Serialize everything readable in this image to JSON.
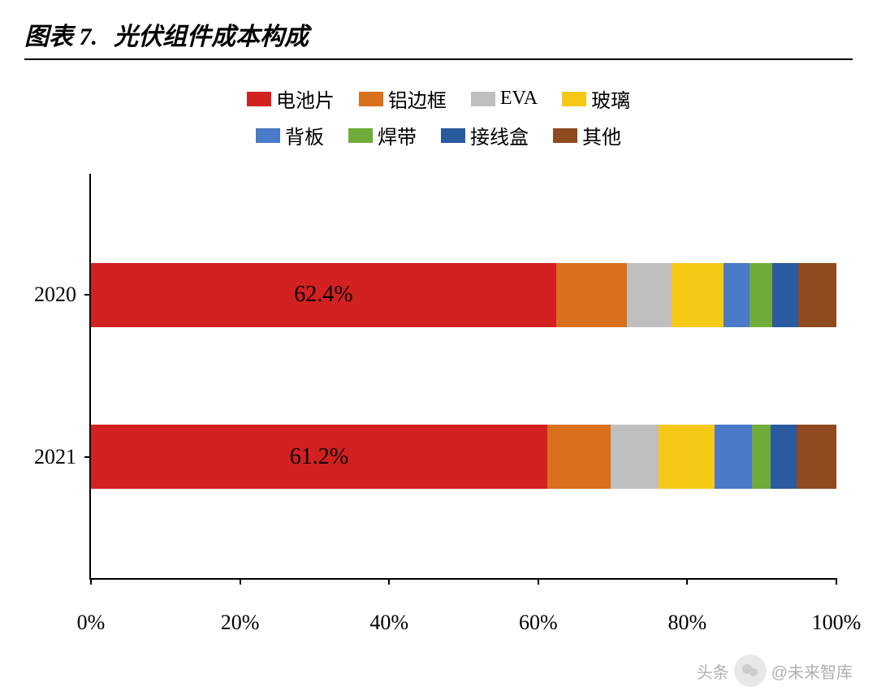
{
  "title": {
    "prefix": "图表 7.",
    "text": "光伏组件成本构成"
  },
  "legend": {
    "rows": [
      [
        {
          "label": "电池片",
          "color": "#d32020"
        },
        {
          "label": "铝边框",
          "color": "#d9701c"
        },
        {
          "label": "EVA",
          "color": "#bfbfbf"
        },
        {
          "label": "玻璃",
          "color": "#f5c816"
        }
      ],
      [
        {
          "label": "背板",
          "color": "#4a7ac8"
        },
        {
          "label": "焊带",
          "color": "#6fac3a"
        },
        {
          "label": "接线盒",
          "color": "#2a5aa0"
        },
        {
          "label": "其他",
          "color": "#8f4a1f"
        }
      ]
    ]
  },
  "chart": {
    "type": "stacked-bar-horizontal",
    "xlim": [
      0,
      100
    ],
    "xtick_step": 20,
    "xtick_suffix": "%",
    "bar_height_pct": 16,
    "background_color": "#ffffff",
    "axis_color": "#000000",
    "label_fontsize": 26,
    "series_colors": {
      "电池片": "#d32020",
      "铝边框": "#d9701c",
      "EVA": "#bfbfbf",
      "玻璃": "#f5c816",
      "背板": "#4a7ac8",
      "焊带": "#6fac3a",
      "接线盒": "#2a5aa0",
      "其他": "#8f4a1f"
    },
    "categories": [
      {
        "name": "2020",
        "top_pct": 22,
        "segments": [
          {
            "key": "电池片",
            "value": 62.4,
            "label": "62.4%"
          },
          {
            "key": "铝边框",
            "value": 9.5
          },
          {
            "key": "EVA",
            "value": 6.0
          },
          {
            "key": "玻璃",
            "value": 7.0
          },
          {
            "key": "背板",
            "value": 3.5
          },
          {
            "key": "焊带",
            "value": 3.0
          },
          {
            "key": "接线盒",
            "value": 3.5
          },
          {
            "key": "其他",
            "value": 5.1
          }
        ]
      },
      {
        "name": "2021",
        "top_pct": 62,
        "segments": [
          {
            "key": "电池片",
            "value": 61.2,
            "label": "61.2%"
          },
          {
            "key": "铝边框",
            "value": 8.5
          },
          {
            "key": "EVA",
            "value": 6.5
          },
          {
            "key": "玻璃",
            "value": 7.5
          },
          {
            "key": "背板",
            "value": 5.0
          },
          {
            "key": "焊带",
            "value": 2.5
          },
          {
            "key": "接线盒",
            "value": 3.5
          },
          {
            "key": "其他",
            "value": 5.3
          }
        ]
      }
    ]
  },
  "watermark": {
    "prefix": "头条",
    "text": "@未来智库"
  }
}
